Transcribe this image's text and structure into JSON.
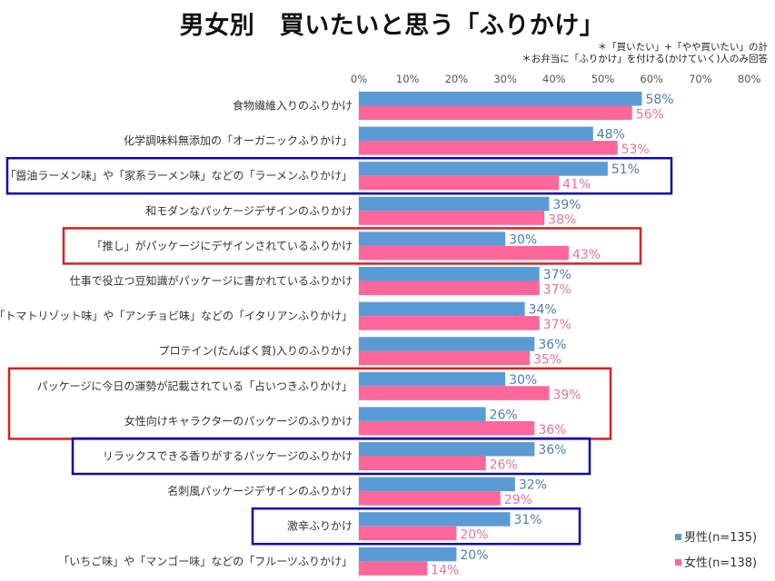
{
  "title": "男女別　買いたいと思う「ふりかけ」",
  "notes": [
    "＊「買いたい」+「やや買いたい」の計",
    "＊お弁当に「ふりかけ」を付ける(かけていく)人のみ回答"
  ],
  "colors": {
    "male": "#5B9BD5",
    "female": "#FF6699",
    "male_label": "#4E7EB0",
    "female_label": "#E8739E",
    "highlight_blue": "#0A0AAA",
    "highlight_red": "#D92020"
  },
  "legend": {
    "male": "男性(n=135)",
    "female": "女性(n=138)"
  },
  "chart_data": {
    "type": "bar",
    "orientation": "horizontal",
    "title": "男女別　買いたいと思う「ふりかけ」",
    "xlabel": "",
    "ylabel": "",
    "xlim": [
      0,
      80
    ],
    "x_ticks": [
      "0%",
      "10%",
      "20%",
      "30%",
      "40%",
      "50%",
      "60%",
      "70%",
      "80%"
    ],
    "x_tick_values": [
      0,
      10,
      20,
      30,
      40,
      50,
      60,
      70,
      80
    ],
    "legend_position": "bottom-right",
    "grid": false,
    "categories": [
      "食物繊維入りのふりかけ",
      "化学調味料無添加の「オーガニックふりかけ」",
      "「醤油ラーメン味」や「家系ラーメン味」などの「ラーメンふりかけ」",
      "和モダンなパッケージデザインのふりかけ",
      "「推し」がパッケージにデザインされているふりかけ",
      "仕事で役立つ豆知識がパッケージに書かれているふりかけ",
      "「トマトリゾット味」や「アンチョビ味」などの「イタリアンふりかけ」",
      "プロテイン(たんぱく質)入りのふりかけ",
      "パッケージに今日の運勢が記載されている「占いつきふりかけ」",
      "女性向けキャラクターのパッケージのふりかけ",
      "リラックスできる香りがするパッケージのふりかけ",
      "名刺風パッケージデザインのふりかけ",
      "激辛ふりかけ",
      "「いちご味」や「マンゴー味」などの「フルーツふりかけ」"
    ],
    "series": [
      {
        "name": "男性(n=135)",
        "values": [
          58,
          48,
          51,
          39,
          30,
          37,
          34,
          36,
          30,
          26,
          36,
          32,
          31,
          20
        ]
      },
      {
        "name": "女性(n=138)",
        "values": [
          56,
          53,
          41,
          38,
          43,
          37,
          37,
          35,
          39,
          36,
          26,
          29,
          20,
          14
        ]
      }
    ],
    "value_suffix": "%",
    "highlights": [
      {
        "color": "blue",
        "rows": [
          2
        ]
      },
      {
        "color": "red",
        "rows": [
          4
        ]
      },
      {
        "color": "red",
        "rows": [
          8,
          9
        ]
      },
      {
        "color": "blue",
        "rows": [
          10
        ]
      },
      {
        "color": "blue",
        "rows": [
          12
        ]
      }
    ]
  }
}
